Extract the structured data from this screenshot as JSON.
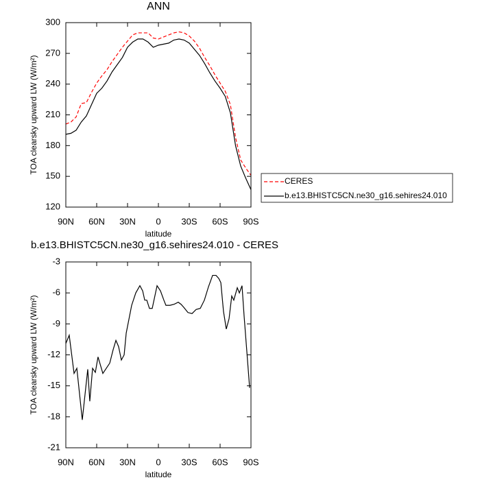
{
  "chart_data": [
    {
      "type": "line",
      "title": "ANN",
      "xlabel": "latitude",
      "ylabel": "TOA clearsky upward LW (W/m²)",
      "x": [
        90,
        85,
        80,
        75,
        70,
        65,
        60,
        55,
        50,
        45,
        40,
        35,
        30,
        25,
        20,
        15,
        10,
        5,
        0,
        -5,
        -10,
        -15,
        -20,
        -25,
        -30,
        -35,
        -40,
        -45,
        -50,
        -55,
        -60,
        -65,
        -70,
        -75,
        -80,
        -85,
        -90
      ],
      "series": [
        {
          "name": "CERES",
          "color": "#ff0000",
          "line_style": "dashed",
          "values": [
            201,
            203,
            208,
            221,
            222,
            232,
            241,
            248,
            254,
            262,
            269,
            276,
            282,
            288,
            290,
            290,
            290,
            285,
            284,
            286,
            288,
            290,
            291,
            290,
            287,
            282,
            275,
            266,
            258,
            249,
            241,
            233,
            220,
            188,
            166,
            158,
            151
          ]
        },
        {
          "name": "b.e13.BHISTC5CN.ne30_g16.sehires24.010",
          "color": "#000000",
          "line_style": "solid",
          "values": [
            191,
            192,
            195,
            203,
            209,
            220,
            231,
            236,
            243,
            252,
            259,
            266,
            276,
            281,
            284,
            284,
            281,
            276,
            278,
            279,
            280,
            283,
            284,
            283,
            280,
            274,
            268,
            260,
            251,
            243,
            236,
            228,
            212,
            180,
            160,
            148,
            137
          ]
        }
      ],
      "xlim": [
        90,
        -90
      ],
      "xticks": [
        {
          "value": 90,
          "label": "90N"
        },
        {
          "value": 60,
          "label": "60N"
        },
        {
          "value": 30,
          "label": "30N"
        },
        0,
        {
          "value": -30,
          "label": "30S"
        },
        {
          "value": -60,
          "label": "60S"
        },
        {
          "value": -90,
          "label": "90S"
        }
      ],
      "ylim": [
        120,
        300
      ],
      "yticks": [
        120,
        150,
        180,
        210,
        240,
        270,
        300
      ],
      "legend": "right"
    },
    {
      "type": "line",
      "title": "b.e13.BHISTC5CN.ne30_g16.sehires24.010 - CERES",
      "xlabel": "latitude",
      "ylabel": "TOA clearsky upward LW (W/m²)",
      "x": [
        90,
        86.7,
        82,
        79.3,
        74,
        68.7,
        66.7,
        64,
        61.3,
        58.7,
        54,
        47.3,
        44,
        41.3,
        38.7,
        36,
        33.3,
        31.3,
        26,
        22,
        18,
        15.3,
        13.3,
        11.3,
        8.7,
        6,
        1.3,
        -2,
        -5.3,
        -7.3,
        -11.3,
        -15.3,
        -19.3,
        -22,
        -24.7,
        -28.7,
        -32.7,
        -36.7,
        -40.7,
        -44.7,
        -48.7,
        -52.7,
        -56,
        -58.7,
        -60.7,
        -63.3,
        -66,
        -68.7,
        -71.3,
        -73.3,
        -76.7,
        -78.7,
        -81.3,
        -83.3,
        -86,
        -88.7
      ],
      "series": [
        {
          "color": "#000000",
          "line_style": "solid",
          "values": [
            -10.9,
            -10.1,
            -13.8,
            -13.3,
            -18.3,
            -13.4,
            -16.5,
            -13.3,
            -13.7,
            -12.2,
            -13.8,
            -12.8,
            -11.5,
            -10.6,
            -11.2,
            -12.5,
            -12,
            -9.9,
            -7.2,
            -6,
            -5.3,
            -5.8,
            -6.7,
            -6.7,
            -7.5,
            -7.5,
            -5.3,
            -5.8,
            -6.7,
            -7.2,
            -7.2,
            -7.1,
            -6.9,
            -7.1,
            -7.4,
            -7.9,
            -8,
            -7.6,
            -7.5,
            -6.7,
            -5.4,
            -4.3,
            -4.3,
            -4.6,
            -5,
            -7.8,
            -9.5,
            -8.5,
            -6.3,
            -6.7,
            -5.5,
            -6,
            -5.3,
            -8.2,
            -11.7,
            -15.2
          ]
        }
      ],
      "xlim": [
        90,
        -90
      ],
      "xticks": [
        {
          "value": 90,
          "label": "90N"
        },
        {
          "value": 60,
          "label": "60N"
        },
        {
          "value": 30,
          "label": "30N"
        },
        0,
        {
          "value": -30,
          "label": "30S"
        },
        {
          "value": -60,
          "label": "60S"
        },
        {
          "value": -90,
          "label": "90S"
        }
      ],
      "ylim": [
        -21,
        -3
      ],
      "yticks": [
        -21,
        -18,
        -15,
        -12,
        -9,
        -6,
        -3
      ]
    }
  ]
}
